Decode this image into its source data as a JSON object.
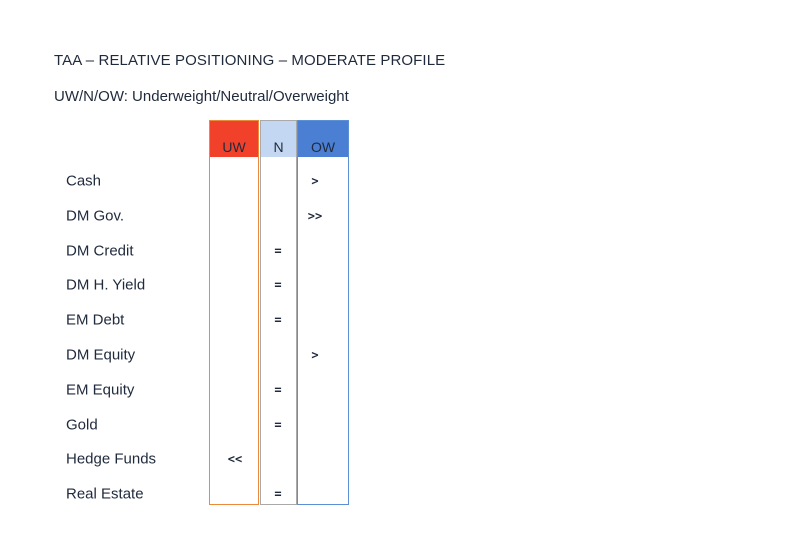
{
  "title": "TAA – RELATIVE POSITIONING – MODERATE PROFILE",
  "subtitle": "UW/N/OW: Underweight/Neutral/Overweight",
  "columns": {
    "uw": "UW",
    "n": "N",
    "ow": "OW"
  },
  "rows": [
    {
      "label": "Cash",
      "position": "ow",
      "mark": ">"
    },
    {
      "label": "DM Gov.",
      "position": "ow",
      "mark": ">>"
    },
    {
      "label": "DM Credit",
      "position": "n",
      "mark": "="
    },
    {
      "label": "DM H. Yield",
      "position": "n",
      "mark": "="
    },
    {
      "label": "EM Debt",
      "position": "n",
      "mark": "="
    },
    {
      "label": "DM Equity",
      "position": "ow",
      "mark": ">"
    },
    {
      "label": "EM Equity",
      "position": "n",
      "mark": "="
    },
    {
      "label": "Gold",
      "position": "n",
      "mark": "="
    },
    {
      "label": "Hedge Funds",
      "position": "uw",
      "mark": "<<"
    },
    {
      "label": "Real Estate",
      "position": "n",
      "mark": "="
    }
  ]
}
